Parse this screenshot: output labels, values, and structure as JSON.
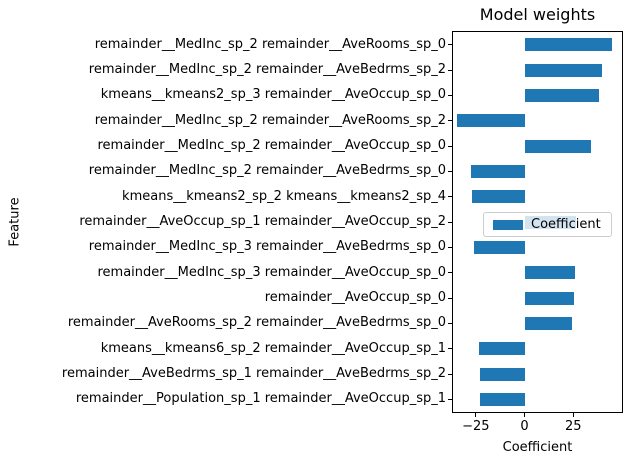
{
  "chart_data": {
    "type": "bar",
    "orientation": "horizontal",
    "title": "Model weights",
    "xlabel": "Coefficient",
    "ylabel": "Feature",
    "legend": {
      "label": "Coefficient",
      "position": "center right",
      "background_alpha": 0.8
    },
    "bar_color": "#1f77b4",
    "grid": false,
    "xlim": [
      -36.7,
      50
    ],
    "xticks": [
      {
        "value": -25,
        "label": "−25"
      },
      {
        "value": 0,
        "label": "0"
      },
      {
        "value": 25,
        "label": "25"
      }
    ],
    "categories": [
      "remainder__MedInc_sp_2 remainder__AveRooms_sp_0",
      "remainder__MedInc_sp_2 remainder__AveBedrms_sp_2",
      "kmeans__kmeans2_sp_3 remainder__AveOccup_sp_0",
      "remainder__MedInc_sp_2 remainder__AveRooms_sp_2",
      "remainder__MedInc_sp_2 remainder__AveOccup_sp_0",
      "remainder__MedInc_sp_2 remainder__AveBedrms_sp_0",
      "kmeans__kmeans2_sp_2 kmeans__kmeans2_sp_4",
      "remainder__AveOccup_sp_1 remainder__AveOccup_sp_2",
      "remainder__MedInc_sp_3 remainder__AveBedrms_sp_0",
      "remainder__MedInc_sp_3 remainder__AveOccup_sp_0",
      "remainder__AveOccup_sp_0",
      "remainder__AveRooms_sp_2 remainder__AveBedrms_sp_0",
      "kmeans__kmeans6_sp_2 remainder__AveOccup_sp_1",
      "remainder__AveBedrms_sp_1 remainder__AveBedrms_sp_2",
      "remainder__Population_sp_1 remainder__AveOccup_sp_1"
    ],
    "values": [
      45,
      39.5,
      38,
      -34.4,
      34,
      -27.6,
      -26.8,
      26.5,
      -26,
      25.8,
      25.2,
      24.6,
      -23.3,
      -23,
      -22.8
    ]
  }
}
